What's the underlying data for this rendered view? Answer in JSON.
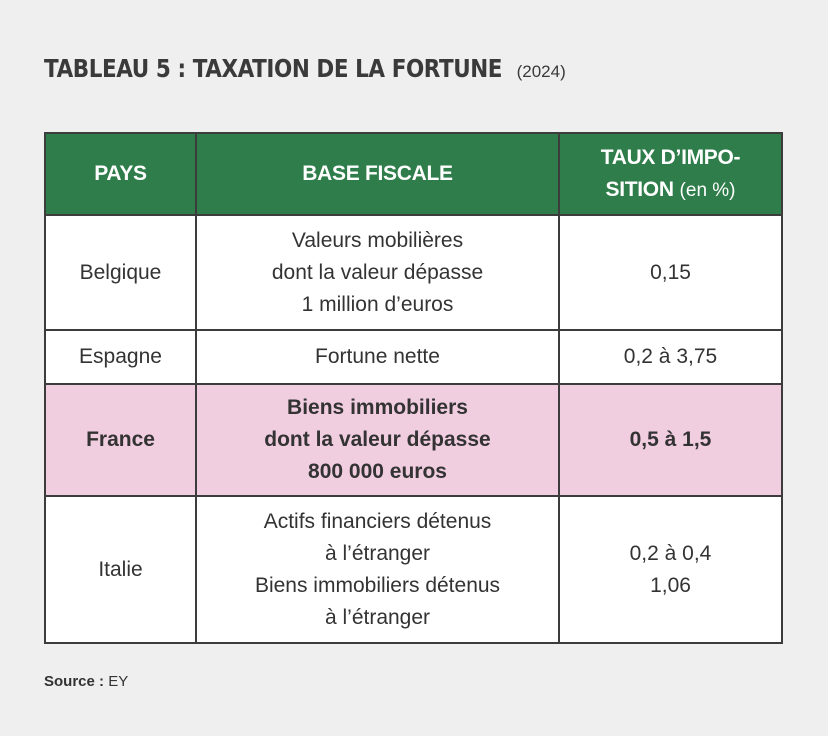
{
  "title": "TABLEAU 5 : TAXATION DE LA FORTUNE",
  "year": "(2024)",
  "headers": {
    "pays": "PAYS",
    "base": "BASE FISCALE",
    "taux_line1": "TAUX D’IMPO-",
    "taux_line2": "SITION",
    "taux_unit": "(en %)"
  },
  "rows": [
    {
      "pays": "Belgique",
      "base": [
        "Valeurs mobilières",
        "dont la valeur dépasse",
        "1 million d’euros"
      ],
      "taux": [
        "0,15"
      ]
    },
    {
      "pays": "Espagne",
      "base": [
        "Fortune nette"
      ],
      "taux": [
        "0,2 à 3,75"
      ]
    },
    {
      "pays": "France",
      "base": [
        "Biens immobiliers",
        "dont la valeur dépasse",
        "800 000 euros"
      ],
      "taux": [
        "0,5 à 1,5"
      ],
      "highlight": "#f1cde0"
    },
    {
      "pays": "Italie",
      "base": [
        "Actifs financiers détenus",
        "à l’étranger",
        "Biens immobiliers détenus",
        "à l’étranger"
      ],
      "taux": [
        "0,2 à 0,4",
        "1,06"
      ]
    }
  ],
  "source": {
    "label": "Source :",
    "value": "EY"
  },
  "colors": {
    "header_bg": "#2e7d4a",
    "highlight_row": "#f1cde0",
    "page_bg": "#efefef"
  }
}
